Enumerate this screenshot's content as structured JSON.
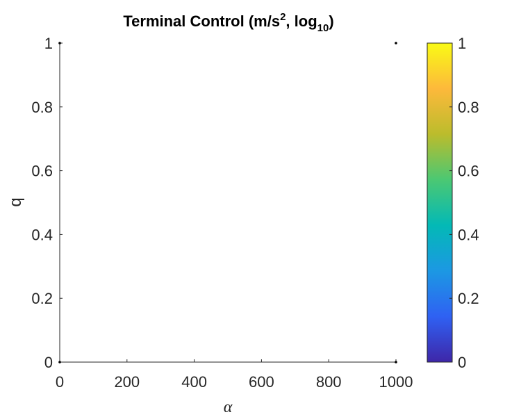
{
  "chart_data": {
    "type": "heatmap",
    "title": {
      "main": "Terminal Control (m/s",
      "sup": "2",
      "mid": ", log",
      "sub": "10",
      "end": ")"
    },
    "xlabel": "α",
    "ylabel": "q",
    "xlim": [
      0,
      1000
    ],
    "ylim": [
      0,
      1
    ],
    "x_ticks": [
      0,
      200,
      400,
      600,
      800,
      1000
    ],
    "x_tick_labels": [
      "0",
      "200",
      "400",
      "600",
      "800",
      "1000"
    ],
    "y_ticks": [
      0,
      0.2,
      0.4,
      0.6,
      0.8,
      1
    ],
    "y_tick_labels": [
      "0",
      "0.2",
      "0.4",
      "0.6",
      "0.8",
      "1"
    ],
    "colorbar": {
      "range": [
        0,
        1
      ],
      "ticks": [
        0,
        0.2,
        0.4,
        0.6,
        0.8,
        1
      ],
      "tick_labels": [
        "0",
        "0.2",
        "0.4",
        "0.6",
        "0.8",
        "1"
      ],
      "colormap": [
        "#3e26a8",
        "#2f61f3",
        "#1c98e3",
        "#03b9b6",
        "#4bc873",
        "#bbbc2c",
        "#fdb93b",
        "#f9fb15"
      ]
    },
    "points": [
      {
        "x": 0,
        "y": 0
      },
      {
        "x": 0,
        "y": 1
      },
      {
        "x": 1000,
        "y": 0
      },
      {
        "x": 1000,
        "y": 1
      }
    ],
    "grid": false
  }
}
